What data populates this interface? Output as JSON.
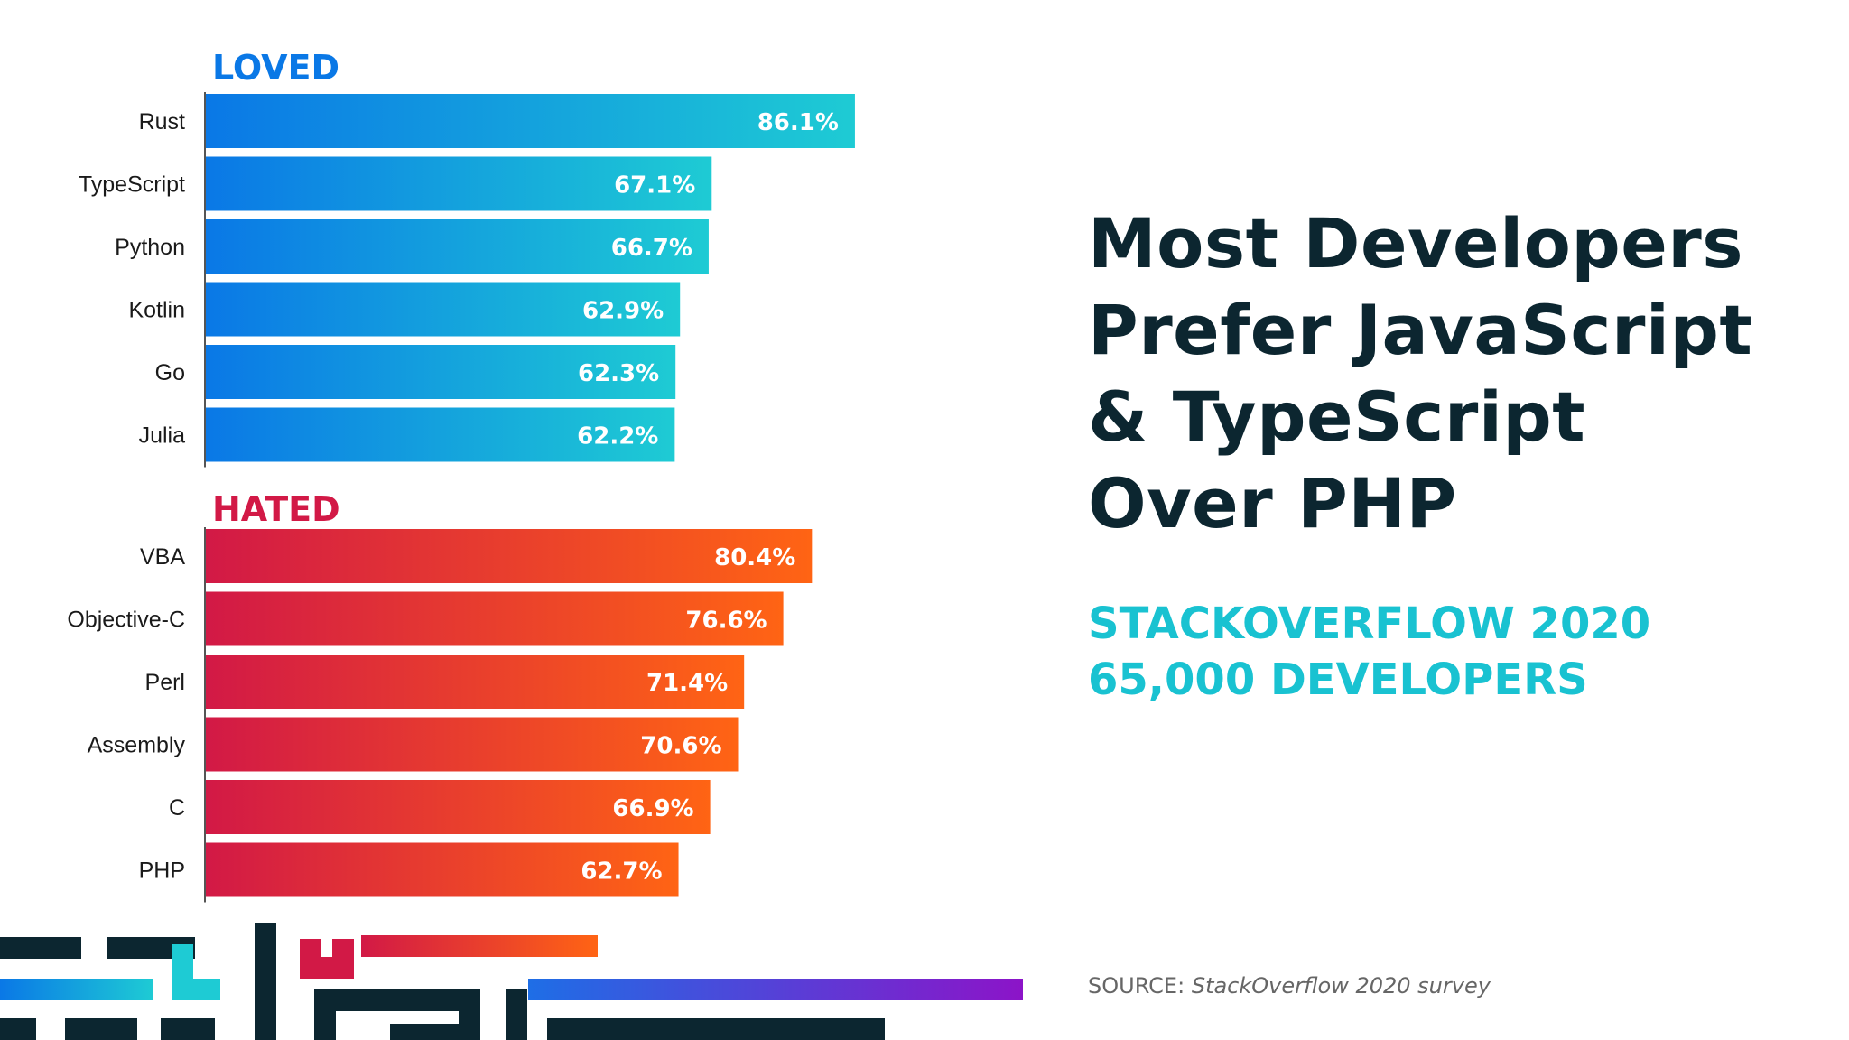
{
  "chart_data": [
    {
      "type": "bar",
      "orientation": "horizontal",
      "title": "LOVED",
      "categories": [
        "Rust",
        "TypeScript",
        "Python",
        "Kotlin",
        "Go",
        "Julia"
      ],
      "values": [
        86.1,
        67.1,
        66.7,
        62.9,
        62.3,
        62.2
      ],
      "value_labels": [
        "86.1%",
        "67.1%",
        "66.7%",
        "62.9%",
        "62.3%",
        "62.2%"
      ],
      "unit": "%",
      "gradient": [
        "#0a78e6",
        "#1ecbd4"
      ],
      "title_color": "#0a78e6"
    },
    {
      "type": "bar",
      "orientation": "horizontal",
      "title": "HATED",
      "categories": [
        "VBA",
        "Objective-C",
        "Perl",
        "Assembly",
        "C",
        "PHP"
      ],
      "values": [
        80.4,
        76.6,
        71.4,
        70.6,
        66.9,
        62.7
      ],
      "value_labels": [
        "80.4%",
        "76.6%",
        "71.4%",
        "70.6%",
        "66.9%",
        "62.7%"
      ],
      "unit": "%",
      "gradient": [
        "#d21946",
        "#ff6414"
      ],
      "title_color": "#d21946"
    }
  ],
  "headline": {
    "lines": [
      "Most Developers",
      "Prefer JavaScript",
      "& TypeScript",
      "Over PHP"
    ],
    "color": "#0c2630"
  },
  "subhead": {
    "line1": "STACKOVERFLOW 2020",
    "line2": "65,000 DEVELOPERS",
    "color": "#19c2d1"
  },
  "source": {
    "prefix": "SOURCE:",
    "text": "StackOverflow 2020 survey"
  }
}
